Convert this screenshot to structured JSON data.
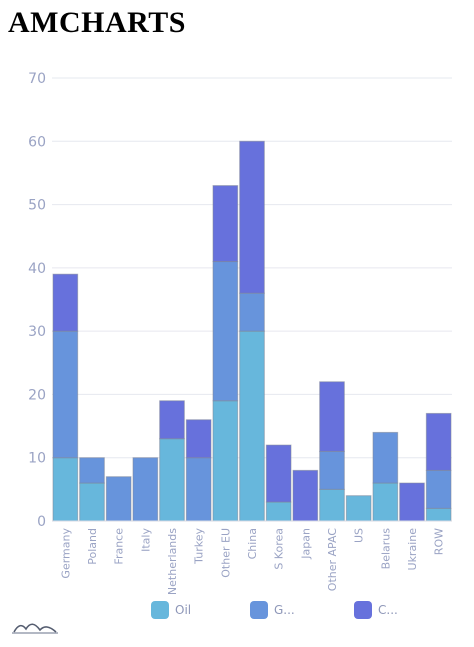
{
  "header": {
    "title": "AMCHARTS"
  },
  "chart_data": {
    "type": "bar",
    "stacked": true,
    "categories": [
      "Germany",
      "Poland",
      "France",
      "Italy",
      "Netherlands",
      "Turkey",
      "Other EU",
      "China",
      "S Korea",
      "Japan",
      "Other APAC",
      "US",
      "Belarus",
      "Ukraine",
      "ROW"
    ],
    "series": [
      {
        "name": "Oil",
        "color": "#67b7dc",
        "values": [
          10,
          6,
          0,
          0,
          13,
          0,
          19,
          30,
          3,
          0,
          5,
          4,
          6,
          0,
          2
        ]
      },
      {
        "name": "G...",
        "color": "#6794dc",
        "values": [
          20,
          4,
          7,
          10,
          0,
          10,
          22,
          6,
          0,
          0,
          6,
          0,
          8,
          0,
          6
        ]
      },
      {
        "name": "C...",
        "color": "#6771dc",
        "values": [
          9,
          0,
          0,
          0,
          6,
          6,
          12,
          24,
          9,
          8,
          11,
          0,
          0,
          6,
          9
        ]
      }
    ],
    "ylim": [
      0,
      70
    ],
    "yticks": [
      "0",
      "10",
      "20",
      "30",
      "40",
      "50",
      "60",
      "70"
    ],
    "grid": true,
    "legend": "bottom"
  }
}
